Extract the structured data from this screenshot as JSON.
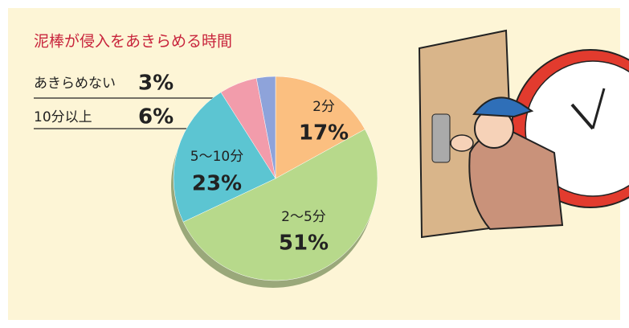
{
  "chart_data": {
    "type": "pie",
    "title": "泥棒が侵入をあきらめる時間",
    "categories": [
      "2分",
      "2〜5分",
      "5〜10分",
      "10分以上",
      "あきらめない"
    ],
    "values": [
      17,
      51,
      23,
      6,
      3
    ],
    "value_labels": [
      "17%",
      "51%",
      "23%",
      "6%",
      "3%"
    ],
    "colors": [
      "#fbbf80",
      "#b7d98b",
      "#5cc5d2",
      "#f29cab",
      "#8ea3da"
    ]
  }
}
